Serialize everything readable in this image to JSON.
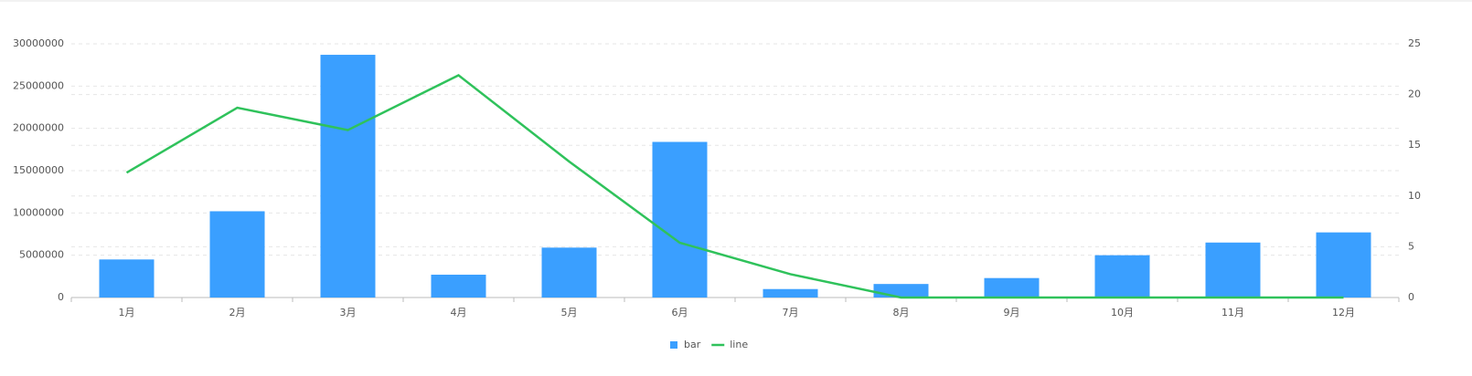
{
  "chart_data": {
    "type": "bar",
    "categories": [
      "1月",
      "2月",
      "3月",
      "4月",
      "5月",
      "6月",
      "7月",
      "8月",
      "9月",
      "10月",
      "11月",
      "12月"
    ],
    "series": [
      {
        "name": "bar",
        "type": "bar",
        "color": "#3a9fff",
        "values": [
          4500000,
          10200000,
          28700000,
          2700000,
          5900000,
          18400000,
          1000000,
          1600000,
          2300000,
          5000000,
          6500000,
          7700000
        ]
      },
      {
        "name": "line",
        "type": "line",
        "axis": "y2",
        "color": "#2fc25b",
        "values": [
          12.3,
          18.7,
          16.5,
          21.9,
          13.4,
          5.4,
          2.3,
          0,
          0,
          0,
          0,
          0
        ]
      }
    ],
    "ylim": [
      0,
      30000000
    ],
    "yticks": [
      0,
      5000000,
      10000000,
      15000000,
      20000000,
      25000000,
      30000000
    ],
    "y2lim": [
      0,
      25
    ],
    "y2ticks": [
      0,
      5,
      10,
      15,
      20,
      25
    ],
    "grid": true,
    "legend": "bottom"
  }
}
